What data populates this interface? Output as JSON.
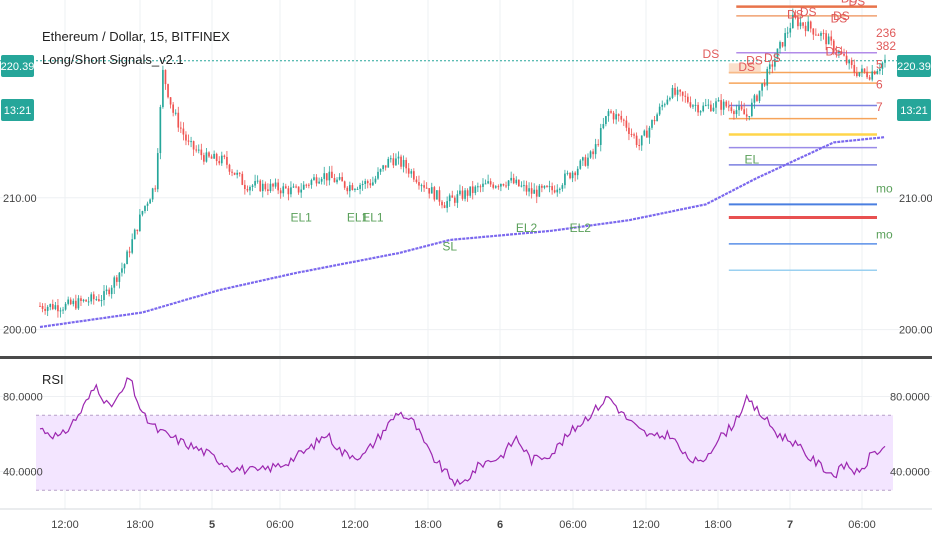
{
  "header": {
    "symbol": "Ethereum / Dollar, 15, BITFINEX",
    "indicator": "Long/Short Signals_v2.1",
    "price_badge": "220.39",
    "time_badge": "13:21"
  },
  "rsi_panel": {
    "label": "RSI",
    "upper_band": 70,
    "lower_band": 30
  },
  "colors": {
    "up_candle": "#26a69a",
    "down_candle": "#ef5350",
    "ema": "#7b68ee",
    "rsi_line": "#9c27b0",
    "rsi_band_fill": "#f3e5ff",
    "badge": "#26a69a",
    "grid": "#eef0f3"
  },
  "chart_data": {
    "type": "candlestick",
    "price_axis": {
      "ticks": [
        "210.00",
        "200.00"
      ],
      "ylim": [
        198,
        225
      ]
    },
    "rsi_axis": {
      "ticks": [
        "80.0000",
        "40.0000"
      ],
      "ylim": [
        20,
        100
      ]
    },
    "time_axis": {
      "ticks": [
        "12:00",
        "18:00",
        "5",
        "06:00",
        "12:00",
        "18:00",
        "6",
        "06:00",
        "12:00",
        "18:00",
        "7",
        "06:00"
      ]
    },
    "price_anchors": [
      [
        0,
        201.8
      ],
      [
        10,
        201.8
      ],
      [
        25,
        202.5
      ],
      [
        33,
        205
      ],
      [
        40,
        209
      ],
      [
        45,
        211
      ],
      [
        48,
        219.5
      ],
      [
        52,
        216.5
      ],
      [
        58,
        214
      ],
      [
        65,
        213
      ],
      [
        72,
        212.8
      ],
      [
        80,
        211
      ],
      [
        90,
        210.8
      ],
      [
        100,
        210.5
      ],
      [
        110,
        211.8
      ],
      [
        120,
        210.9
      ],
      [
        130,
        211.2
      ],
      [
        137,
        213
      ],
      [
        142,
        212.5
      ],
      [
        150,
        211
      ],
      [
        158,
        209.6
      ],
      [
        166,
        210.3
      ],
      [
        175,
        211
      ],
      [
        183,
        211.3
      ],
      [
        192,
        210.4
      ],
      [
        200,
        210.6
      ],
      [
        208,
        212
      ],
      [
        216,
        213.3
      ],
      [
        222,
        216.5
      ],
      [
        228,
        215.8
      ],
      [
        234,
        214
      ],
      [
        240,
        216
      ],
      [
        246,
        218
      ],
      [
        252,
        217.5
      ],
      [
        258,
        216.8
      ],
      [
        264,
        217.1
      ],
      [
        270,
        216.9
      ],
      [
        276,
        216.2
      ],
      [
        282,
        218.5
      ],
      [
        288,
        221
      ],
      [
        294,
        223.5
      ],
      [
        300,
        223
      ],
      [
        306,
        222.2
      ],
      [
        312,
        221
      ],
      [
        318,
        219.6
      ],
      [
        324,
        219.4
      ],
      [
        330,
        220.39
      ]
    ],
    "ema_anchors": [
      [
        0,
        200.2
      ],
      [
        40,
        201.3
      ],
      [
        70,
        203
      ],
      [
        100,
        204.3
      ],
      [
        140,
        205.8
      ],
      [
        160,
        206.8
      ],
      [
        200,
        207.5
      ],
      [
        230,
        208.3
      ],
      [
        260,
        209.5
      ],
      [
        280,
        211.5
      ],
      [
        310,
        214.2
      ],
      [
        330,
        214.6
      ]
    ],
    "rsi_anchors": [
      [
        0,
        63
      ],
      [
        8,
        58
      ],
      [
        15,
        70
      ],
      [
        22,
        86
      ],
      [
        27,
        74
      ],
      [
        31,
        80
      ],
      [
        35,
        90
      ],
      [
        40,
        70
      ],
      [
        46,
        62
      ],
      [
        55,
        56
      ],
      [
        65,
        50
      ],
      [
        75,
        42
      ],
      [
        85,
        40
      ],
      [
        95,
        44
      ],
      [
        105,
        52
      ],
      [
        112,
        60
      ],
      [
        118,
        50
      ],
      [
        126,
        48
      ],
      [
        132,
        58
      ],
      [
        140,
        72
      ],
      [
        146,
        66
      ],
      [
        152,
        50
      ],
      [
        158,
        40
      ],
      [
        164,
        32
      ],
      [
        172,
        44
      ],
      [
        180,
        48
      ],
      [
        186,
        58
      ],
      [
        192,
        46
      ],
      [
        200,
        50
      ],
      [
        208,
        62
      ],
      [
        216,
        72
      ],
      [
        222,
        80
      ],
      [
        228,
        70
      ],
      [
        234,
        62
      ],
      [
        240,
        58
      ],
      [
        246,
        60
      ],
      [
        252,
        48
      ],
      [
        258,
        44
      ],
      [
        264,
        56
      ],
      [
        270,
        64
      ],
      [
        276,
        78
      ],
      [
        282,
        70
      ],
      [
        288,
        60
      ],
      [
        294,
        56
      ],
      [
        300,
        48
      ],
      [
        306,
        42
      ],
      [
        310,
        38
      ],
      [
        315,
        44
      ],
      [
        320,
        38
      ],
      [
        325,
        50
      ],
      [
        330,
        52
      ]
    ],
    "level_lines": [
      {
        "price": 224.5,
        "color": "#e8734a",
        "width": 2.5,
        "x_start": 0.79
      },
      {
        "price": 223.8,
        "color": "#f0a070",
        "width": 1.5,
        "x_start": 0.79
      },
      {
        "price": 221.0,
        "color": "#b28be8",
        "width": 1.5,
        "x_start": 0.79
      },
      {
        "price": 219.5,
        "color": "#f6a45a",
        "width": 1.5,
        "x_start": 0.782
      },
      {
        "price": 218.7,
        "color": "#f6a45a",
        "width": 1.5,
        "x_start": 0.782
      },
      {
        "price": 217.0,
        "color": "#7b7fe0",
        "width": 1.5,
        "x_start": 0.782
      },
      {
        "price": 216.0,
        "color": "#f6a45a",
        "width": 1.5,
        "x_start": 0.782
      },
      {
        "price": 214.8,
        "color": "#ffd54a",
        "width": 2.5,
        "x_start": 0.782
      },
      {
        "price": 213.8,
        "color": "#9a8be8",
        "width": 1.5,
        "x_start": 0.782
      },
      {
        "price": 212.5,
        "color": "#7b7fe0",
        "width": 1.5,
        "x_start": 0.782
      },
      {
        "price": 209.5,
        "color": "#4a7fe0",
        "width": 2.0,
        "x_start": 0.782
      },
      {
        "price": 208.5,
        "color": "#e85050",
        "width": 3.0,
        "x_start": 0.782
      },
      {
        "price": 206.5,
        "color": "#5a8fe8",
        "width": 1.5,
        "x_start": 0.782
      },
      {
        "price": 204.5,
        "color": "#9ad0f0",
        "width": 1.5,
        "x_start": 0.782
      }
    ],
    "signals": [
      {
        "label": "DS",
        "color": "red",
        "i": 262,
        "price": 220.6
      },
      {
        "label": "DS",
        "color": "red",
        "i": 276,
        "price": 219.6
      },
      {
        "label": "DS",
        "color": "red",
        "i": 279,
        "price": 220.1
      },
      {
        "label": "DS",
        "color": "red",
        "i": 286,
        "price": 220.3
      },
      {
        "label": "DS",
        "color": "red",
        "i": 295,
        "price": 223.6
      },
      {
        "label": "DS",
        "color": "red",
        "i": 300,
        "price": 223.8
      },
      {
        "label": "DS",
        "color": "red",
        "i": 310,
        "price": 220.8
      },
      {
        "label": "DS",
        "color": "red",
        "i": 312,
        "price": 223.3
      },
      {
        "label": "DS",
        "color": "red",
        "i": 313,
        "price": 223.5
      },
      {
        "label": "DS",
        "color": "red",
        "i": 316,
        "price": 224.8
      },
      {
        "label": "DS",
        "color": "red",
        "i": 318,
        "price": 225.3
      },
      {
        "label": "DS",
        "color": "red",
        "i": 319,
        "price": 224.6
      },
      {
        "label": "EL1",
        "color": "green",
        "i": 102,
        "price": 208.2
      },
      {
        "label": "EL1",
        "color": "green",
        "i": 124,
        "price": 208.2
      },
      {
        "label": "EL1",
        "color": "green",
        "i": 130,
        "price": 208.2
      },
      {
        "label": "SL",
        "color": "green",
        "i": 160,
        "price": 206.0
      },
      {
        "label": "EL2",
        "color": "green",
        "i": 190,
        "price": 207.4
      },
      {
        "label": "EL2",
        "color": "green",
        "i": 211,
        "price": 207.4
      },
      {
        "label": "EL",
        "color": "green",
        "i": 278,
        "price": 212.6
      }
    ],
    "right_labels": [
      {
        "label": "236",
        "color": "red",
        "price": 222.2
      },
      {
        "label": "382",
        "color": "red",
        "price": 221.2
      },
      {
        "label": "5",
        "color": "red",
        "price": 219.8
      },
      {
        "label": "6",
        "color": "red",
        "price": 218.3
      },
      {
        "label": "7",
        "color": "red",
        "price": 216.6
      },
      {
        "label": "mo",
        "color": "green",
        "price": 210.4
      },
      {
        "label": "mo",
        "color": "green",
        "price": 206.9
      }
    ]
  }
}
